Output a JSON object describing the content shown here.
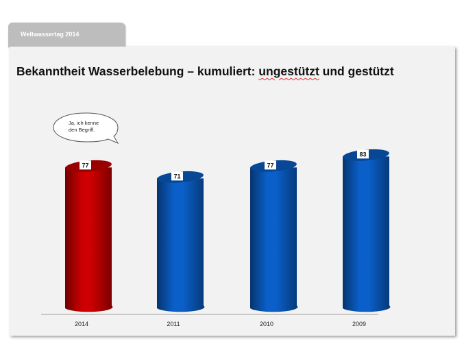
{
  "header": {
    "tab_label": "Weltwassertag 2014"
  },
  "chart_data": {
    "type": "bar",
    "title_parts": [
      "Bekanntheit Wasserbelebung – kumuliert: ",
      "ungestützt",
      " und gestützt"
    ],
    "categories": [
      "2014",
      "2011",
      "2010",
      "2009"
    ],
    "values": [
      77,
      71,
      77,
      83
    ],
    "colors": [
      "#cc0000",
      "#0a5fc8",
      "#0a5fc8",
      "#0a5fc8"
    ],
    "callout": [
      "Ja, ich kenne",
      "den Begriff."
    ],
    "xlabel": "",
    "ylabel": "",
    "grid": false,
    "bar_style": "3d-cylinder"
  }
}
